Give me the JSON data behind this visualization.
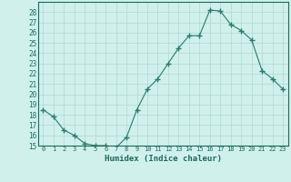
{
  "xlabel": "Humidex (Indice chaleur)",
  "x": [
    0,
    1,
    2,
    3,
    4,
    5,
    6,
    7,
    8,
    9,
    10,
    11,
    12,
    13,
    14,
    15,
    16,
    17,
    18,
    19,
    20,
    21,
    22,
    23
  ],
  "y": [
    18.5,
    17.8,
    16.5,
    16.0,
    15.2,
    15.0,
    15.0,
    14.8,
    15.8,
    18.5,
    20.5,
    21.5,
    23.0,
    24.5,
    25.7,
    25.7,
    28.2,
    28.1,
    26.8,
    26.2,
    25.3,
    22.3,
    21.5,
    20.5
  ],
  "line_color": "#2d7a6a",
  "marker": "+",
  "marker_size": 4,
  "marker_lw": 1.0,
  "bg_color": "#d0f0ec",
  "grid_color_major": "#b0d8d4",
  "grid_color_minor": "#c4e8e4",
  "text_color": "#1a6b5a",
  "ylim": [
    15,
    29
  ],
  "xlim": [
    -0.5,
    23.5
  ],
  "yticks": [
    15,
    16,
    17,
    18,
    19,
    20,
    21,
    22,
    23,
    24,
    25,
    26,
    27,
    28
  ],
  "xtick_labels": [
    "0",
    "1",
    "2",
    "3",
    "4",
    "5",
    "6",
    "7",
    "8",
    "9",
    "10",
    "11",
    "12",
    "13",
    "14",
    "15",
    "16",
    "17",
    "18",
    "19",
    "20",
    "21",
    "22",
    "23"
  ]
}
